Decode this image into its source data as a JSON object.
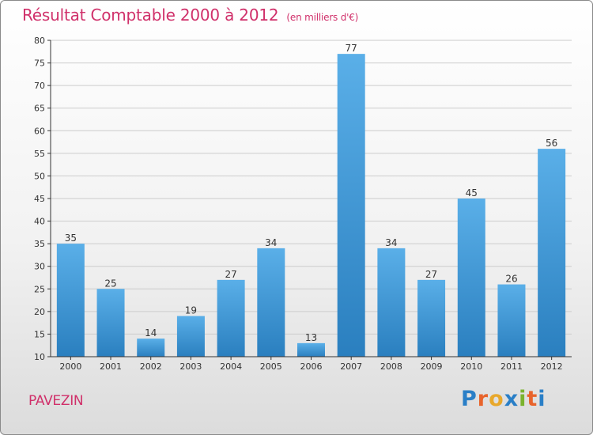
{
  "header": {
    "title": "Résultat Comptable 2000 à 2012",
    "subtitle": "(en milliers d'€)"
  },
  "footer": {
    "commune": "PAVEZIN",
    "logo_letters": [
      "P",
      "r",
      "o",
      "x",
      "i",
      "t",
      "i"
    ],
    "logo_colors": [
      "#2a7fc7",
      "#e8642c",
      "#e8a82c",
      "#2a7fc7",
      "#7ab32e",
      "#e8642c",
      "#2a7fc7"
    ]
  },
  "colors": {
    "bar_top": "#5aafe8",
    "bar_bottom": "#2a7fbf",
    "axis": "#333333",
    "grid": "#cccccc",
    "title": "#d0306a"
  },
  "chart_data": {
    "type": "bar",
    "title": "Résultat Comptable 2000 à 2012",
    "xlabel": "",
    "ylabel": "",
    "categories": [
      "2000",
      "2001",
      "2002",
      "2003",
      "2004",
      "2005",
      "2006",
      "2007",
      "2008",
      "2009",
      "2010",
      "2011",
      "2012"
    ],
    "values": [
      35,
      25,
      14,
      19,
      27,
      34,
      13,
      77,
      34,
      27,
      45,
      26,
      56
    ],
    "ylim": [
      10,
      80
    ],
    "yticks": [
      10,
      15,
      20,
      25,
      30,
      35,
      40,
      45,
      50,
      55,
      60,
      65,
      70,
      75,
      80
    ],
    "grid": true
  }
}
